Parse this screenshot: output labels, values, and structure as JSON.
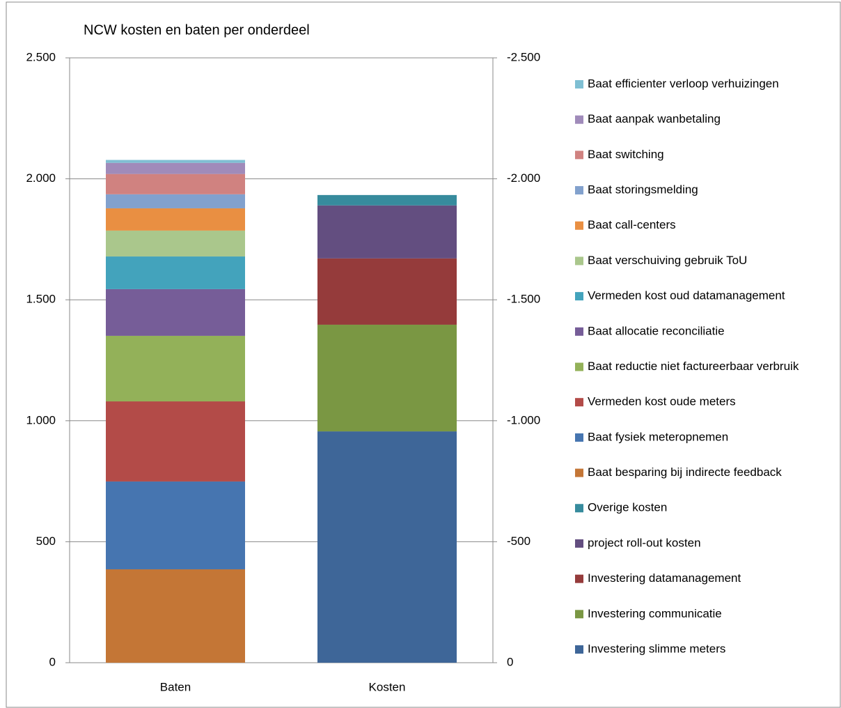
{
  "chart_data": {
    "type": "bar",
    "stacked": true,
    "title": "NCW kosten en baten per onderdeel",
    "categories": [
      "Baten",
      "Kosten"
    ],
    "ylim": [
      0,
      2500
    ],
    "yticks": [
      0,
      500,
      {
        "value": 1000,
        "label": "1.000"
      },
      {
        "value": 1500,
        "label": "1.500"
      },
      {
        "value": 2000,
        "label": "2.000"
      },
      {
        "value": 2500,
        "label": "2.500"
      }
    ],
    "y2lim": [
      0,
      -2500
    ],
    "y2ticks": [
      0,
      -500,
      {
        "value": -1000,
        "label": "-1.000"
      },
      {
        "value": -1500,
        "label": "-1.500"
      },
      {
        "value": -2000,
        "label": "-2.000"
      },
      {
        "value": -2500,
        "label": "-2.500"
      }
    ],
    "grid": true,
    "legend": "right",
    "series": [
      {
        "name": "Investering slimme  meters",
        "color": "#3e6698",
        "axis": "y2",
        "values": [
          null,
          -956
        ]
      },
      {
        "name": "Investering communicatie",
        "color": "#7a9743",
        "axis": "y2",
        "values": [
          null,
          -441
        ]
      },
      {
        "name": "Investering datamanagement",
        "color": "#953b3b",
        "axis": "y2",
        "values": [
          null,
          -274
        ]
      },
      {
        "name": "project roll-out kosten",
        "color": "#634e80",
        "axis": "y2",
        "values": [
          null,
          -219
        ]
      },
      {
        "name": "Overige kosten",
        "color": "#378b9d",
        "axis": "y2",
        "values": [
          null,
          -43
        ]
      },
      {
        "name": "Baat besparing bij indirecte feedback",
        "color": "#c47636",
        "values": [
          386,
          null
        ]
      },
      {
        "name": "Baat fysiek meteropnemen",
        "color": "#4675b0",
        "values": [
          363,
          null
        ]
      },
      {
        "name": "Vermeden kost oude meters",
        "color": "#b34b48",
        "values": [
          331,
          null
        ]
      },
      {
        "name": "Baat reductie niet factureerbaar verbruik",
        "color": "#93b159",
        "values": [
          271,
          null
        ]
      },
      {
        "name": "Baat allocatie reconciliatie",
        "color": "#765d98",
        "values": [
          193,
          null
        ]
      },
      {
        "name": "Vermeden kost oud datamanagement",
        "color": "#43a3bc",
        "values": [
          135,
          null
        ]
      },
      {
        "name": "Baat verschuiving gebruik ToU",
        "color": "#aac78c",
        "values": [
          107,
          null
        ]
      },
      {
        "name": "Baat call-centers",
        "color": "#e98f42",
        "values": [
          92,
          null
        ]
      },
      {
        "name": "Baat storingsmelding",
        "color": "#82a1cd",
        "values": [
          58,
          null
        ]
      },
      {
        "name": "Baat switching",
        "color": "#d08280",
        "values": [
          84,
          null
        ]
      },
      {
        "name": "Baat aanpak wanbetaling",
        "color": "#a08bba",
        "values": [
          46,
          null
        ]
      },
      {
        "name": "Baat efficienter verloop verhuizingen",
        "color": "#7fbfd3",
        "values": [
          12,
          null
        ]
      }
    ]
  }
}
